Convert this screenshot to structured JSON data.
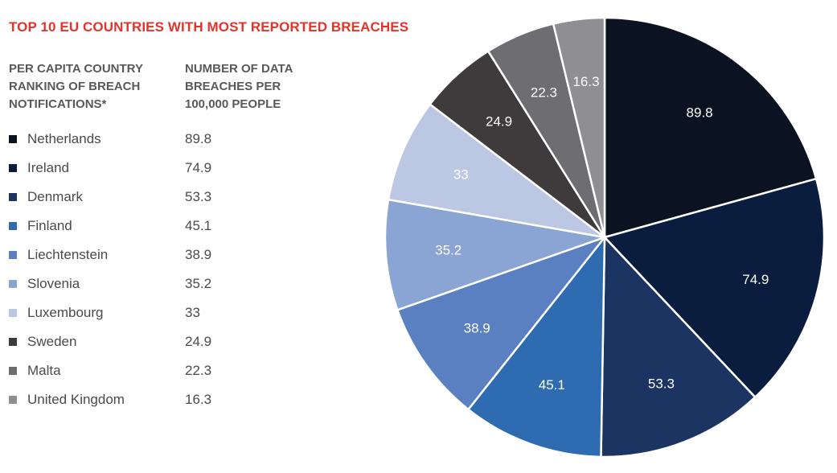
{
  "title": "TOP 10 EU COUNTRIES WITH MOST REPORTED BREACHES",
  "legend_header": {
    "left": "PER CAPITA COUNTRY\nRANKING OF BREACH\nNOTIFICATIONS*",
    "right": "NUMBER OF DATA\nBREACHES PER\n100,000 PEOPLE"
  },
  "chart_data": {
    "type": "pie",
    "categories": [
      "Netherlands",
      "Ireland",
      "Denmark",
      "Finland",
      "Liechtenstein",
      "Slovenia",
      "Luxembourg",
      "Sweden",
      "Malta",
      "United Kingdom"
    ],
    "values": [
      89.8,
      74.9,
      53.3,
      45.1,
      38.9,
      35.2,
      33,
      24.9,
      22.3,
      16.3
    ],
    "value_labels": [
      "89.8",
      "74.9",
      "53.3",
      "45.1",
      "38.9",
      "35.2",
      "33",
      "24.9",
      "22.3",
      "16.3"
    ],
    "colors": [
      "#0b1221",
      "#0a1d3f",
      "#1b3461",
      "#2f6bb1",
      "#5b80c2",
      "#8aa4d3",
      "#bcc7e3",
      "#3f3b3c",
      "#6e6d71",
      "#8f8e92"
    ],
    "label_colors": [
      "#ffffff",
      "#ffffff",
      "#ffffff",
      "#ffffff",
      "#ffffff",
      "#ffffff",
      "#ffffff",
      "#ffffff",
      "#ffffff",
      "#ffffff"
    ],
    "legend_placement": "left",
    "start_direction": "top",
    "direction": "clockwise"
  }
}
